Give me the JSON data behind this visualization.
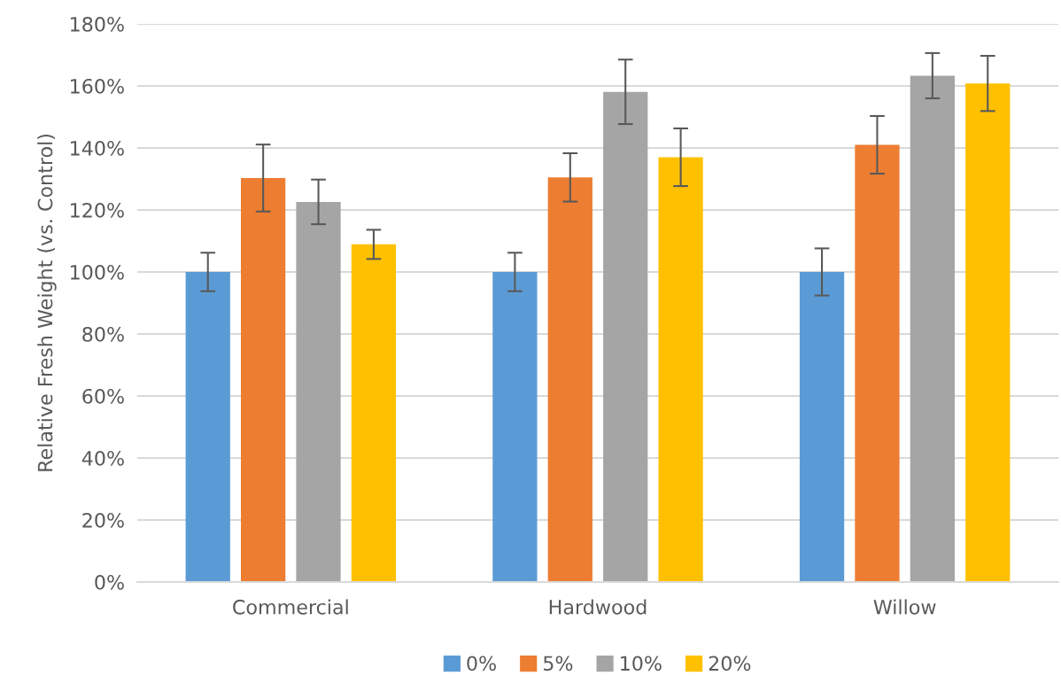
{
  "chart_data": {
    "type": "bar",
    "ylabel": "Relative Fresh Weight (vs. Control)",
    "categories": [
      "Commercial",
      "Hardwood",
      "Willow"
    ],
    "series": [
      {
        "name": "0%",
        "color": "#5b9bd5",
        "values": [
          100,
          100,
          100
        ],
        "errors": [
          6.2,
          6.2,
          7.6
        ]
      },
      {
        "name": "5%",
        "color": "#ed7d31",
        "values": [
          130.3,
          130.5,
          141.0
        ],
        "errors": [
          10.8,
          7.8,
          9.3
        ]
      },
      {
        "name": "10%",
        "color": "#a5a5a5",
        "values": [
          122.6,
          158.1,
          163.3
        ],
        "errors": [
          7.2,
          10.4,
          7.3
        ]
      },
      {
        "name": "20%",
        "color": "#ffc000",
        "values": [
          108.9,
          137.0,
          160.8
        ],
        "errors": [
          4.7,
          9.3,
          8.9
        ]
      }
    ],
    "ylim": [
      0,
      180
    ],
    "yticks": [
      {
        "value": 0,
        "label": "0%"
      },
      {
        "value": 20,
        "label": "20%"
      },
      {
        "value": 40,
        "label": "40%"
      },
      {
        "value": 60,
        "label": "60%"
      },
      {
        "value": 80,
        "label": "80%"
      },
      {
        "value": 100,
        "label": "100%"
      },
      {
        "value": 120,
        "label": "120%"
      },
      {
        "value": 140,
        "label": "140%"
      },
      {
        "value": 160,
        "label": "160%"
      },
      {
        "value": 180,
        "label": "180%"
      }
    ],
    "grid": "y",
    "legend": "bottom"
  }
}
